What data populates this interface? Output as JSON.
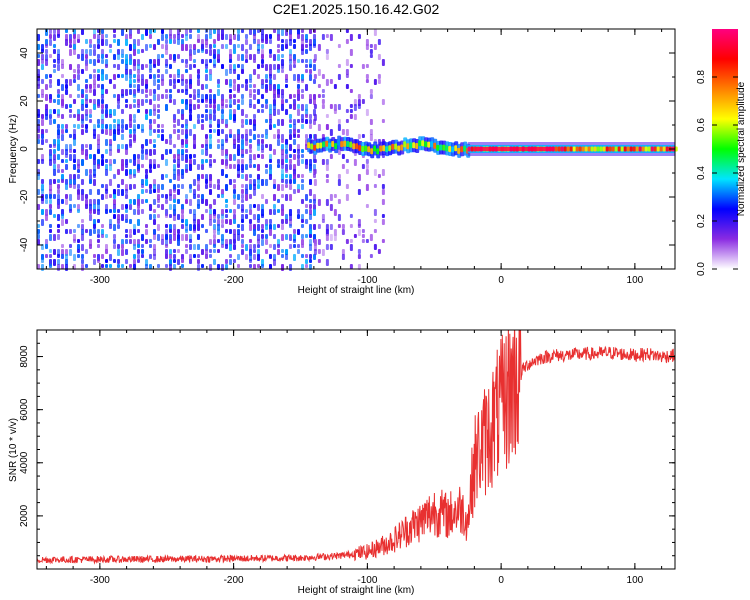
{
  "figure": {
    "title": "C2E1.2025.150.16.42.G02"
  },
  "chart_data": [
    {
      "type": "heatmap",
      "xlabel": "Height of straight line (km)",
      "ylabel": "Frequency (Hz)",
      "xlim": [
        -347,
        130
      ],
      "ylim": [
        -50,
        50
      ],
      "x_ticks": [
        "-300",
        "-200",
        "-100",
        "0",
        "100"
      ],
      "y_ticks": [
        "-40",
        "-20",
        "0",
        "20",
        "40"
      ],
      "colorbar": {
        "label": "Normalized spectral amplitude",
        "range": [
          0,
          1
        ],
        "ticks": [
          "0.0",
          "0.2",
          "0.4",
          "0.6",
          "0.8"
        ],
        "colors": [
          "#ffffff",
          "#8a2be2",
          "#0000ff",
          "#00e5ff",
          "#00ff00",
          "#ffff00",
          "#ff8000",
          "#ff0000",
          "#ff0080"
        ]
      },
      "regions": [
        {
          "x": [
            -347,
            -140
          ],
          "description_level": 0.25,
          "freq_spread": [
            -50,
            50
          ]
        },
        {
          "x": [
            -140,
            -88
          ],
          "description_level": 0.15,
          "freq_spread": [
            -50,
            50
          ]
        },
        {
          "x": [
            -145,
            -25
          ],
          "description_level": 0.55,
          "freq_spread": [
            -6,
            6
          ]
        },
        {
          "x": [
            -25,
            130
          ],
          "description_level": 0.95,
          "freq_spread": [
            -2,
            2
          ]
        }
      ],
      "grid": false
    },
    {
      "type": "line",
      "xlabel": "Height of straight line (km)",
      "ylabel": "SNR (10 * v/v)",
      "xlim": [
        -347,
        130
      ],
      "ylim": [
        0,
        9000
      ],
      "x_ticks": [
        "-300",
        "-200",
        "-100",
        "0",
        "100"
      ],
      "y_ticks": [
        "2000",
        "4000",
        "6000",
        "8000"
      ],
      "color": "#e83030",
      "grid": false,
      "series": [
        {
          "x": [
            -347,
            -300,
            -250,
            -200,
            -150,
            -120,
            -100,
            -90,
            -80,
            -70,
            -60,
            -50,
            -40,
            -30,
            -25,
            -20,
            -15,
            -10,
            -5,
            0,
            5,
            10,
            15,
            20,
            25,
            30,
            40,
            50,
            60,
            70,
            80,
            90,
            100,
            110,
            120,
            130
          ],
          "y": [
            350,
            360,
            370,
            390,
            420,
            500,
            650,
            850,
            1100,
            1500,
            1800,
            2200,
            2000,
            2300,
            1800,
            4000,
            4600,
            5000,
            5600,
            6000,
            6600,
            7100,
            7450,
            7700,
            7850,
            7950,
            8050,
            8050,
            8100,
            8100,
            8150,
            8100,
            8050,
            8100,
            8000,
            8050
          ]
        }
      ]
    }
  ]
}
